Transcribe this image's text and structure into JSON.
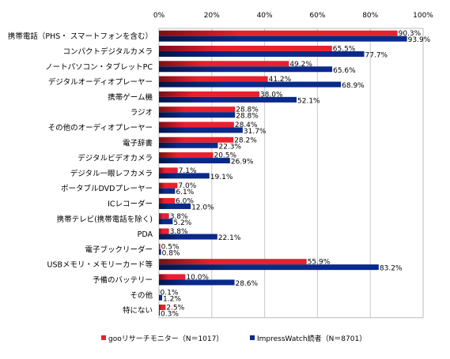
{
  "chart_data": {
    "type": "bar",
    "orientation": "horizontal",
    "xlim": [
      0,
      100
    ],
    "x_ticks": [
      "0%",
      "20%",
      "40%",
      "60%",
      "80%",
      "100%"
    ],
    "grid": true,
    "legend_position": "bottom",
    "categories": [
      "携帯電話（PHS・ スマートフォンを含む）",
      "コンパクトデジタルカメラ",
      "ノートパソコン・タブレットPC",
      "デジタルオーディオプレーヤー",
      "携帯ゲーム機",
      "ラジオ",
      "その他のオーディオプレーヤー",
      "電子辞書",
      "デジタルビデオカメラ",
      "デジタル一眼レフカメラ",
      "ポータブルDVDプレーヤー",
      "ICレコーダー",
      "携帯テレビ(携帯電話を除く)",
      "PDA",
      "電子ブックリーダー",
      "USBメモリ・メモリーカード等",
      "予備のバッテリー",
      "その他",
      "特にない"
    ],
    "series": [
      {
        "name": "gooリサーチモニター（N＝1017）",
        "color": "#e8212e",
        "values": [
          90.3,
          65.5,
          49.2,
          41.2,
          38.0,
          28.8,
          28.4,
          28.2,
          20.5,
          7.1,
          7.0,
          6.0,
          3.8,
          3.8,
          0.5,
          55.9,
          10.0,
          0.1,
          2.5
        ],
        "labels": [
          "90.3%",
          "65.5%",
          "49.2%",
          "41.2%",
          "38.0%",
          "28.8%",
          "28.4%",
          "28.2%",
          "20.5%",
          "7.1%",
          "7.0%",
          "6.0%",
          "3.8%",
          "3.8%",
          "0.5%",
          "55.9%",
          "10.0%",
          "0.1%",
          "2.5%"
        ]
      },
      {
        "name": "ImpressWatch読者（N＝8701）",
        "color": "#0a2a8a",
        "values": [
          93.9,
          77.7,
          65.6,
          68.9,
          52.1,
          28.8,
          31.7,
          22.3,
          26.9,
          19.1,
          6.1,
          12.0,
          5.2,
          22.1,
          0.8,
          83.2,
          28.6,
          1.2,
          0.3
        ],
        "labels": [
          "93.9%",
          "77.7%",
          "65.6%",
          "68.9%",
          "52.1%",
          "28.8%",
          "31.7%",
          "22.3%",
          "26.9%",
          "19.1%",
          "6.1%",
          "12.0%",
          "5.2%",
          "22.1%",
          "0.8%",
          "83.2%",
          "28.6%",
          "1.2%",
          "0.3%"
        ]
      }
    ]
  }
}
